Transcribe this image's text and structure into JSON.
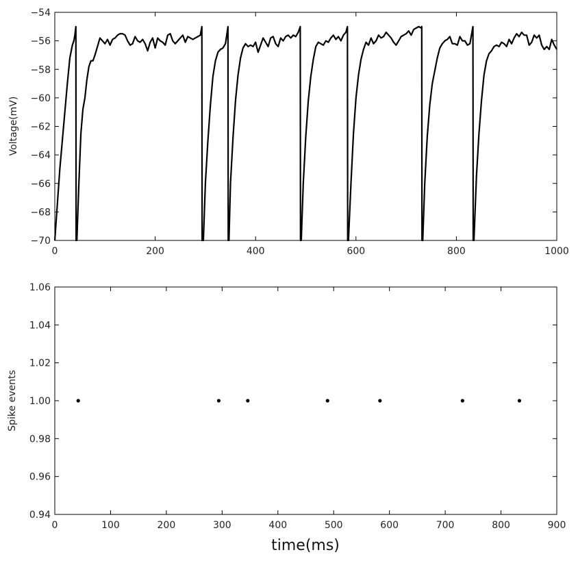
{
  "chart_data": [
    {
      "type": "line",
      "title": "",
      "xlabel": "",
      "ylabel": "Voltage(mV)",
      "xlim": [
        0,
        1000
      ],
      "ylim": [
        -70,
        -54
      ],
      "xticks": [
        0,
        200,
        400,
        600,
        800,
        1000
      ],
      "yticks": [
        -70,
        -68,
        -66,
        -64,
        -62,
        -60,
        -58,
        -56,
        -54
      ],
      "grid": false,
      "legend": "none",
      "line_color": "#000000",
      "series": [
        {
          "points": [
            [
              0,
              -70
            ],
            [
              5,
              -67.5
            ],
            [
              10,
              -65
            ],
            [
              15,
              -63
            ],
            [
              20,
              -61
            ],
            [
              25,
              -59
            ],
            [
              30,
              -57.2
            ],
            [
              35,
              -56.3
            ],
            [
              38,
              -56
            ],
            [
              40,
              -55.6
            ],
            [
              42,
              -55
            ],
            [
              42.5,
              -70
            ],
            [
              44,
              -70
            ],
            [
              48,
              -66
            ],
            [
              52,
              -62.5
            ],
            [
              56,
              -60.8
            ],
            [
              60,
              -60
            ],
            [
              64,
              -58.7
            ],
            [
              68,
              -57.8
            ],
            [
              72,
              -57.4
            ],
            [
              76,
              -57.4
            ],
            [
              80,
              -57
            ],
            [
              85,
              -56.4
            ],
            [
              90,
              -55.8
            ],
            [
              95,
              -56
            ],
            [
              100,
              -56.2
            ],
            [
              105,
              -55.9
            ],
            [
              110,
              -56.3
            ],
            [
              115,
              -55.9
            ],
            [
              120,
              -55.8
            ],
            [
              125,
              -55.6
            ],
            [
              130,
              -55.5
            ],
            [
              135,
              -55.5
            ],
            [
              140,
              -55.6
            ],
            [
              145,
              -56
            ],
            [
              150,
              -56.3
            ],
            [
              155,
              -56.2
            ],
            [
              160,
              -55.7
            ],
            [
              165,
              -56
            ],
            [
              170,
              -56.1
            ],
            [
              175,
              -55.9
            ],
            [
              180,
              -56.2
            ],
            [
              185,
              -56.7
            ],
            [
              190,
              -56.1
            ],
            [
              195,
              -55.8
            ],
            [
              200,
              -56.5
            ],
            [
              205,
              -55.8
            ],
            [
              210,
              -56
            ],
            [
              215,
              -56.1
            ],
            [
              220,
              -56.3
            ],
            [
              225,
              -55.6
            ],
            [
              230,
              -55.5
            ],
            [
              235,
              -56
            ],
            [
              240,
              -56.2
            ],
            [
              245,
              -56
            ],
            [
              250,
              -55.8
            ],
            [
              255,
              -55.6
            ],
            [
              260,
              -56.1
            ],
            [
              265,
              -55.7
            ],
            [
              270,
              -55.8
            ],
            [
              275,
              -55.9
            ],
            [
              280,
              -55.8
            ],
            [
              285,
              -55.7
            ],
            [
              290,
              -55.6
            ],
            [
              293,
              -55
            ],
            [
              293.5,
              -70
            ],
            [
              296,
              -70
            ],
            [
              300,
              -66
            ],
            [
              305,
              -63
            ],
            [
              310,
              -60.5
            ],
            [
              315,
              -58.5
            ],
            [
              320,
              -57.4
            ],
            [
              325,
              -56.8
            ],
            [
              330,
              -56.6
            ],
            [
              335,
              -56.5
            ],
            [
              340,
              -56.2
            ],
            [
              343,
              -55.5
            ],
            [
              345,
              -55
            ],
            [
              345.5,
              -70
            ],
            [
              347,
              -70
            ],
            [
              350,
              -66
            ],
            [
              355,
              -62.8
            ],
            [
              360,
              -60.2
            ],
            [
              365,
              -58.4
            ],
            [
              370,
              -57.2
            ],
            [
              375,
              -56.5
            ],
            [
              380,
              -56.2
            ],
            [
              385,
              -56.4
            ],
            [
              390,
              -56.3
            ],
            [
              395,
              -56.4
            ],
            [
              400,
              -56.1
            ],
            [
              405,
              -56.8
            ],
            [
              410,
              -56.3
            ],
            [
              415,
              -55.8
            ],
            [
              420,
              -56.1
            ],
            [
              425,
              -56.4
            ],
            [
              430,
              -55.8
            ],
            [
              435,
              -55.7
            ],
            [
              440,
              -56.2
            ],
            [
              445,
              -56.4
            ],
            [
              450,
              -55.8
            ],
            [
              455,
              -56
            ],
            [
              460,
              -55.7
            ],
            [
              465,
              -55.6
            ],
            [
              470,
              -55.8
            ],
            [
              475,
              -55.6
            ],
            [
              480,
              -55.7
            ],
            [
              485,
              -55.4
            ],
            [
              489,
              -55
            ],
            [
              489.5,
              -70
            ],
            [
              491,
              -70
            ],
            [
              495,
              -66
            ],
            [
              500,
              -62.7
            ],
            [
              505,
              -60.2
            ],
            [
              510,
              -58.5
            ],
            [
              515,
              -57.3
            ],
            [
              520,
              -56.4
            ],
            [
              525,
              -56.1
            ],
            [
              530,
              -56.2
            ],
            [
              535,
              -56.3
            ],
            [
              540,
              -56
            ],
            [
              545,
              -56.1
            ],
            [
              550,
              -55.8
            ],
            [
              555,
              -55.6
            ],
            [
              560,
              -55.9
            ],
            [
              565,
              -55.7
            ],
            [
              570,
              -56
            ],
            [
              575,
              -55.6
            ],
            [
              580,
              -55.4
            ],
            [
              583,
              -55
            ],
            [
              583.5,
              -70
            ],
            [
              585,
              -70
            ],
            [
              590,
              -66
            ],
            [
              595,
              -62.5
            ],
            [
              600,
              -60
            ],
            [
              605,
              -58.4
            ],
            [
              610,
              -57.3
            ],
            [
              615,
              -56.6
            ],
            [
              620,
              -56.1
            ],
            [
              625,
              -56.3
            ],
            [
              630,
              -55.8
            ],
            [
              635,
              -56.2
            ],
            [
              640,
              -56
            ],
            [
              645,
              -55.6
            ],
            [
              650,
              -55.8
            ],
            [
              655,
              -55.7
            ],
            [
              660,
              -55.4
            ],
            [
              665,
              -55.6
            ],
            [
              670,
              -55.8
            ],
            [
              675,
              -56.1
            ],
            [
              680,
              -56.3
            ],
            [
              685,
              -56
            ],
            [
              690,
              -55.7
            ],
            [
              695,
              -55.6
            ],
            [
              700,
              -55.5
            ],
            [
              705,
              -55.3
            ],
            [
              710,
              -55.6
            ],
            [
              715,
              -55.2
            ],
            [
              720,
              -55.1
            ],
            [
              725,
              -55
            ],
            [
              730,
              -55.1
            ],
            [
              731,
              -55
            ],
            [
              731.5,
              -70
            ],
            [
              733,
              -70
            ],
            [
              737,
              -66
            ],
            [
              742,
              -62.7
            ],
            [
              747,
              -60.5
            ],
            [
              752,
              -59
            ],
            [
              757,
              -58.1
            ],
            [
              762,
              -57.2
            ],
            [
              767,
              -56.5
            ],
            [
              772,
              -56.2
            ],
            [
              777,
              -56
            ],
            [
              782,
              -55.9
            ],
            [
              787,
              -55.7
            ],
            [
              792,
              -56.2
            ],
            [
              797,
              -56.2
            ],
            [
              802,
              -56.3
            ],
            [
              807,
              -55.7
            ],
            [
              812,
              -56
            ],
            [
              817,
              -56
            ],
            [
              822,
              -56.3
            ],
            [
              827,
              -56.2
            ],
            [
              830,
              -55.6
            ],
            [
              833,
              -55
            ],
            [
              833.5,
              -70
            ],
            [
              835,
              -70
            ],
            [
              840,
              -65.5
            ],
            [
              845,
              -62.5
            ],
            [
              850,
              -60.2
            ],
            [
              855,
              -58.4
            ],
            [
              860,
              -57.4
            ],
            [
              865,
              -56.9
            ],
            [
              870,
              -56.7
            ],
            [
              875,
              -56.4
            ],
            [
              880,
              -56.3
            ],
            [
              885,
              -56.4
            ],
            [
              890,
              -56.1
            ],
            [
              895,
              -56.2
            ],
            [
              900,
              -56.4
            ],
            [
              905,
              -55.9
            ],
            [
              910,
              -56.2
            ],
            [
              915,
              -55.8
            ],
            [
              920,
              -55.5
            ],
            [
              925,
              -55.7
            ],
            [
              930,
              -55.4
            ],
            [
              935,
              -55.6
            ],
            [
              940,
              -55.6
            ],
            [
              945,
              -56.3
            ],
            [
              950,
              -56.1
            ],
            [
              955,
              -55.6
            ],
            [
              960,
              -55.8
            ],
            [
              965,
              -55.6
            ],
            [
              970,
              -56.3
            ],
            [
              975,
              -56.6
            ],
            [
              980,
              -56.4
            ],
            [
              985,
              -56.6
            ],
            [
              990,
              -55.9
            ],
            [
              995,
              -56.3
            ],
            [
              1000,
              -56.6
            ]
          ]
        }
      ]
    },
    {
      "type": "scatter",
      "title": "",
      "xlabel": "time(ms)",
      "ylabel": "Spike events",
      "xlim": [
        0,
        900
      ],
      "ylim": [
        0.94,
        1.06
      ],
      "xticks": [
        0,
        100,
        200,
        300,
        400,
        500,
        600,
        700,
        800,
        900
      ],
      "yticks": [
        0.94,
        0.96,
        0.98,
        1.0,
        1.02,
        1.04,
        1.06
      ],
      "ytick_labels": [
        "0.94",
        "0.96",
        "0.98",
        "1.00",
        "1.02",
        "1.04",
        "1.06"
      ],
      "grid": false,
      "legend": "none",
      "marker_color": "#000000",
      "x": [
        42,
        294,
        346,
        489,
        583,
        731,
        833
      ],
      "y": [
        1.0,
        1.0,
        1.0,
        1.0,
        1.0,
        1.0,
        1.0
      ]
    }
  ]
}
